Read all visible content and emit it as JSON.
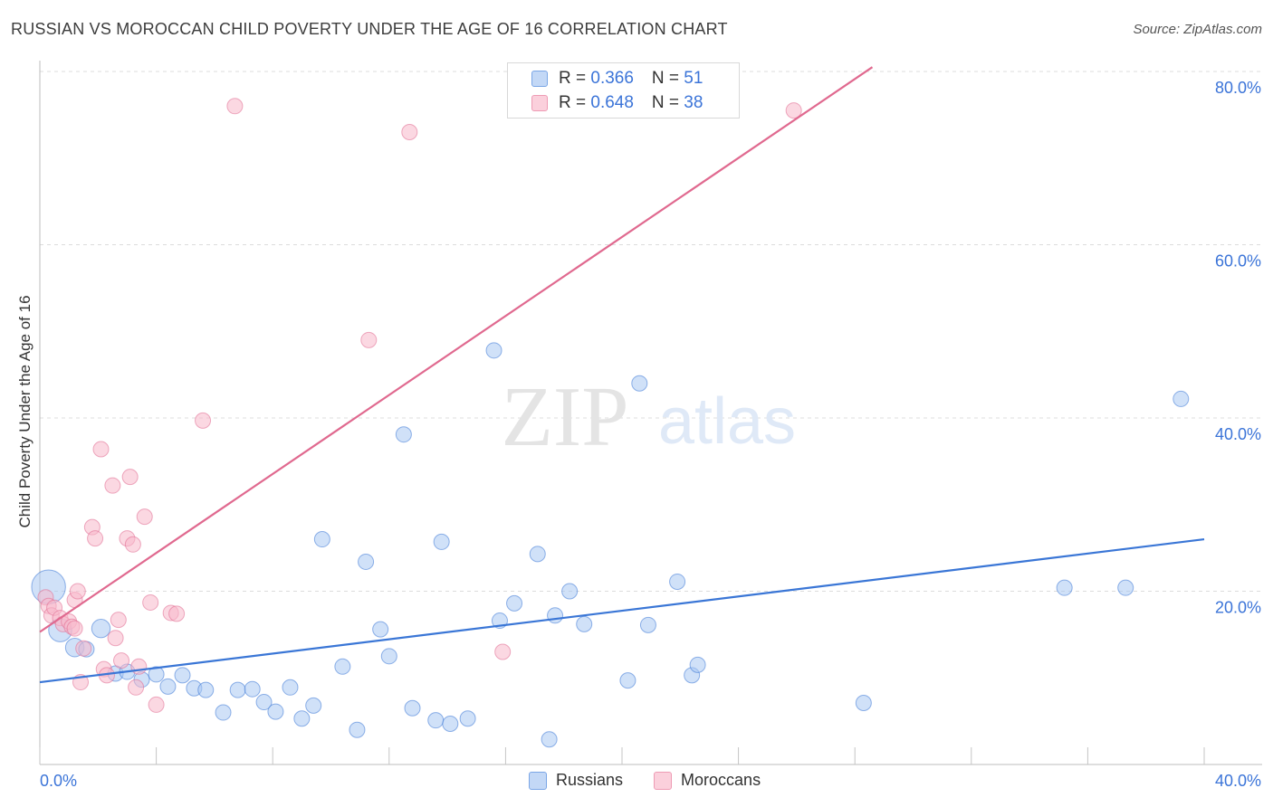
{
  "title": "RUSSIAN VS MOROCCAN CHILD POVERTY UNDER THE AGE OF 16 CORRELATION CHART",
  "source": "Source: ZipAtlas.com",
  "watermark": {
    "zip": "ZIP",
    "atlas": "atlas"
  },
  "legend": {
    "rows": [
      {
        "r_label": "R = ",
        "r_value": "0.366",
        "n_label": "N = ",
        "n_value": "51",
        "color": "#a9c8f2"
      },
      {
        "r_label": "R = ",
        "r_value": "0.648",
        "n_label": "N = ",
        "n_value": "38",
        "color": "#f7b8cb"
      }
    ]
  },
  "bottom_legend": {
    "russians": "Russians",
    "moroccans": "Moroccans"
  },
  "chart_data": {
    "type": "scatter",
    "title": "RUSSIAN VS MOROCCAN CHILD POVERTY UNDER THE AGE OF 16 CORRELATION CHART",
    "xlabel": "",
    "ylabel": "Child Poverty Under the Age of 16",
    "xlim": [
      0,
      40
    ],
    "ylim": [
      0,
      80
    ],
    "x_tick_labels": [
      "0.0%",
      "40.0%"
    ],
    "y_tick_labels": [
      "20.0%",
      "40.0%",
      "60.0%",
      "80.0%"
    ],
    "y_ticks": [
      20,
      40,
      60,
      80
    ],
    "grid": true,
    "series": [
      {
        "name": "Russians",
        "color": "#3a76d6",
        "fill": "#a9c8f2",
        "r": 0.366,
        "n": 51,
        "trend": {
          "x": [
            0,
            40
          ],
          "y": 9.5,
          "y_end": 26.0
        },
        "points": [
          {
            "x": 0.3,
            "y": 20.5,
            "s": 2.2
          },
          {
            "x": 0.7,
            "y": 15.5,
            "s": 1.5
          },
          {
            "x": 1.2,
            "y": 13.5,
            "s": 1.2
          },
          {
            "x": 1.6,
            "y": 13.3,
            "s": 1.0
          },
          {
            "x": 2.1,
            "y": 15.7,
            "s": 1.2
          },
          {
            "x": 2.6,
            "y": 10.5,
            "s": 1.0
          },
          {
            "x": 3.0,
            "y": 10.7,
            "s": 1.0
          },
          {
            "x": 3.5,
            "y": 9.8,
            "s": 1.0
          },
          {
            "x": 4.0,
            "y": 10.4,
            "s": 1.0
          },
          {
            "x": 4.4,
            "y": 9.0,
            "s": 1.0
          },
          {
            "x": 4.9,
            "y": 10.3,
            "s": 1.0
          },
          {
            "x": 5.3,
            "y": 8.8,
            "s": 1.0
          },
          {
            "x": 5.7,
            "y": 8.6,
            "s": 1.0
          },
          {
            "x": 6.3,
            "y": 6.0,
            "s": 1.0
          },
          {
            "x": 6.8,
            "y": 8.6,
            "s": 1.0
          },
          {
            "x": 7.3,
            "y": 8.7,
            "s": 1.0
          },
          {
            "x": 7.7,
            "y": 7.2,
            "s": 1.0
          },
          {
            "x": 8.1,
            "y": 6.1,
            "s": 1.0
          },
          {
            "x": 8.6,
            "y": 8.9,
            "s": 1.0
          },
          {
            "x": 9.0,
            "y": 5.3,
            "s": 1.0
          },
          {
            "x": 9.4,
            "y": 6.8,
            "s": 1.0
          },
          {
            "x": 9.7,
            "y": 26.0,
            "s": 1.0
          },
          {
            "x": 10.4,
            "y": 11.3,
            "s": 1.0
          },
          {
            "x": 10.9,
            "y": 4.0,
            "s": 1.0
          },
          {
            "x": 11.2,
            "y": 23.4,
            "s": 1.0
          },
          {
            "x": 11.7,
            "y": 15.6,
            "s": 1.0
          },
          {
            "x": 12.0,
            "y": 12.5,
            "s": 1.0
          },
          {
            "x": 12.5,
            "y": 38.1,
            "s": 1.0
          },
          {
            "x": 12.8,
            "y": 6.5,
            "s": 1.0
          },
          {
            "x": 13.6,
            "y": 5.1,
            "s": 1.0
          },
          {
            "x": 13.8,
            "y": 25.7,
            "s": 1.0
          },
          {
            "x": 14.1,
            "y": 4.7,
            "s": 1.0
          },
          {
            "x": 14.7,
            "y": 5.3,
            "s": 1.0
          },
          {
            "x": 15.6,
            "y": 47.8,
            "s": 1.0
          },
          {
            "x": 15.8,
            "y": 16.6,
            "s": 1.0
          },
          {
            "x": 16.3,
            "y": 18.6,
            "s": 1.0
          },
          {
            "x": 17.1,
            "y": 24.3,
            "s": 1.0
          },
          {
            "x": 17.5,
            "y": 2.9,
            "s": 1.0
          },
          {
            "x": 17.7,
            "y": 17.2,
            "s": 1.0
          },
          {
            "x": 18.2,
            "y": 20.0,
            "s": 1.0
          },
          {
            "x": 18.7,
            "y": 16.2,
            "s": 1.0
          },
          {
            "x": 20.2,
            "y": 9.7,
            "s": 1.0
          },
          {
            "x": 20.6,
            "y": 44.0,
            "s": 1.0
          },
          {
            "x": 20.9,
            "y": 16.1,
            "s": 1.0
          },
          {
            "x": 21.9,
            "y": 21.1,
            "s": 1.0
          },
          {
            "x": 22.4,
            "y": 10.3,
            "s": 1.0
          },
          {
            "x": 22.6,
            "y": 11.5,
            "s": 1.0
          },
          {
            "x": 28.3,
            "y": 7.1,
            "s": 1.0
          },
          {
            "x": 35.2,
            "y": 20.4,
            "s": 1.0
          },
          {
            "x": 37.3,
            "y": 20.4,
            "s": 1.0
          },
          {
            "x": 39.2,
            "y": 42.2,
            "s": 1.0
          }
        ]
      },
      {
        "name": "Moroccans",
        "color": "#e0698f",
        "fill": "#f7b8cb",
        "r": 0.648,
        "n": 38,
        "trend": {
          "x": [
            0,
            28.6
          ],
          "y": 15.3,
          "y_end": 80.5
        },
        "points": [
          {
            "x": 0.2,
            "y": 19.3,
            "s": 1.0
          },
          {
            "x": 0.3,
            "y": 18.3,
            "s": 1.0
          },
          {
            "x": 0.4,
            "y": 17.2,
            "s": 1.0
          },
          {
            "x": 0.5,
            "y": 18.1,
            "s": 1.0
          },
          {
            "x": 0.7,
            "y": 16.9,
            "s": 1.0
          },
          {
            "x": 0.8,
            "y": 16.2,
            "s": 1.0
          },
          {
            "x": 1.0,
            "y": 16.5,
            "s": 1.0
          },
          {
            "x": 1.1,
            "y": 15.9,
            "s": 1.0
          },
          {
            "x": 1.2,
            "y": 15.7,
            "s": 1.0
          },
          {
            "x": 1.2,
            "y": 19.0,
            "s": 1.0
          },
          {
            "x": 1.3,
            "y": 20.0,
            "s": 1.0
          },
          {
            "x": 1.4,
            "y": 9.5,
            "s": 1.0
          },
          {
            "x": 1.5,
            "y": 13.4,
            "s": 1.0
          },
          {
            "x": 1.8,
            "y": 27.4,
            "s": 1.0
          },
          {
            "x": 1.9,
            "y": 26.1,
            "s": 1.0
          },
          {
            "x": 2.1,
            "y": 36.4,
            "s": 1.0
          },
          {
            "x": 2.2,
            "y": 11.0,
            "s": 1.0
          },
          {
            "x": 2.3,
            "y": 10.3,
            "s": 1.0
          },
          {
            "x": 2.5,
            "y": 32.2,
            "s": 1.0
          },
          {
            "x": 2.6,
            "y": 14.6,
            "s": 1.0
          },
          {
            "x": 2.7,
            "y": 16.7,
            "s": 1.0
          },
          {
            "x": 2.8,
            "y": 12.0,
            "s": 1.0
          },
          {
            "x": 3.0,
            "y": 26.1,
            "s": 1.0
          },
          {
            "x": 3.1,
            "y": 33.2,
            "s": 1.0
          },
          {
            "x": 3.2,
            "y": 25.4,
            "s": 1.0
          },
          {
            "x": 3.3,
            "y": 8.9,
            "s": 1.0
          },
          {
            "x": 3.4,
            "y": 11.3,
            "s": 1.0
          },
          {
            "x": 3.6,
            "y": 28.6,
            "s": 1.0
          },
          {
            "x": 3.8,
            "y": 18.7,
            "s": 1.0
          },
          {
            "x": 4.0,
            "y": 6.9,
            "s": 1.0
          },
          {
            "x": 4.5,
            "y": 17.5,
            "s": 1.0
          },
          {
            "x": 4.7,
            "y": 17.4,
            "s": 1.0
          },
          {
            "x": 5.6,
            "y": 39.7,
            "s": 1.0
          },
          {
            "x": 6.7,
            "y": 76.0,
            "s": 1.0
          },
          {
            "x": 11.3,
            "y": 49.0,
            "s": 1.0
          },
          {
            "x": 12.7,
            "y": 73.0,
            "s": 1.0
          },
          {
            "x": 15.9,
            "y": 13.0,
            "s": 1.0
          },
          {
            "x": 25.9,
            "y": 75.5,
            "s": 1.0
          }
        ]
      }
    ]
  }
}
